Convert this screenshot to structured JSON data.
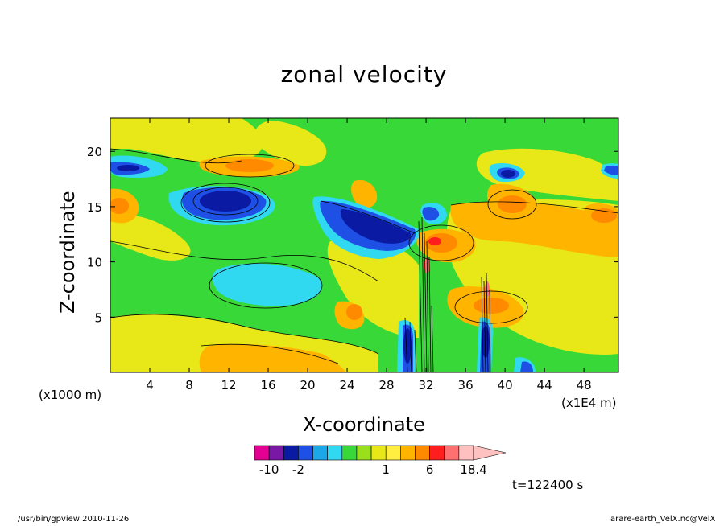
{
  "chart_data": {
    "type": "heatmap",
    "title": "zonal velocity",
    "xlabel": "X-coordinate",
    "ylabel": "Z-coordinate",
    "x_unit_left": "(x1000 m)",
    "x_unit_right": "(x1E4 m)",
    "xlim": [
      0,
      51.5
    ],
    "ylim": [
      0,
      23
    ],
    "xticks": [
      4,
      8,
      12,
      16,
      20,
      24,
      28,
      32,
      36,
      40,
      44,
      48
    ],
    "yticks": [
      5,
      10,
      15,
      20
    ],
    "colorbar": {
      "levels": [
        -14,
        -10,
        -6,
        -2,
        -1.5,
        -1,
        -0.5,
        0,
        0.5,
        1,
        2,
        4,
        6,
        10,
        14,
        18.4
      ],
      "labels": [
        "-10",
        "-2",
        "1",
        "6",
        "18.4"
      ],
      "label_values": [
        -10,
        -2,
        1,
        6,
        18.4
      ],
      "colors": [
        "#e40090",
        "#7a18a6",
        "#0a1aa2",
        "#1e50e6",
        "#1aa8e8",
        "#30d8f0",
        "#38d838",
        "#9adf1c",
        "#e8e818",
        "#ffee40",
        "#ffb400",
        "#ff8a00",
        "#ff1e1e",
        "#ff7070",
        "#ffc0c0"
      ]
    },
    "grid": false,
    "annotation": "t=122400 s"
  },
  "footer": {
    "left": "/usr/bin/gpview   2010-11-26",
    "right": "arare-earth_VelX.nc@VelX"
  }
}
